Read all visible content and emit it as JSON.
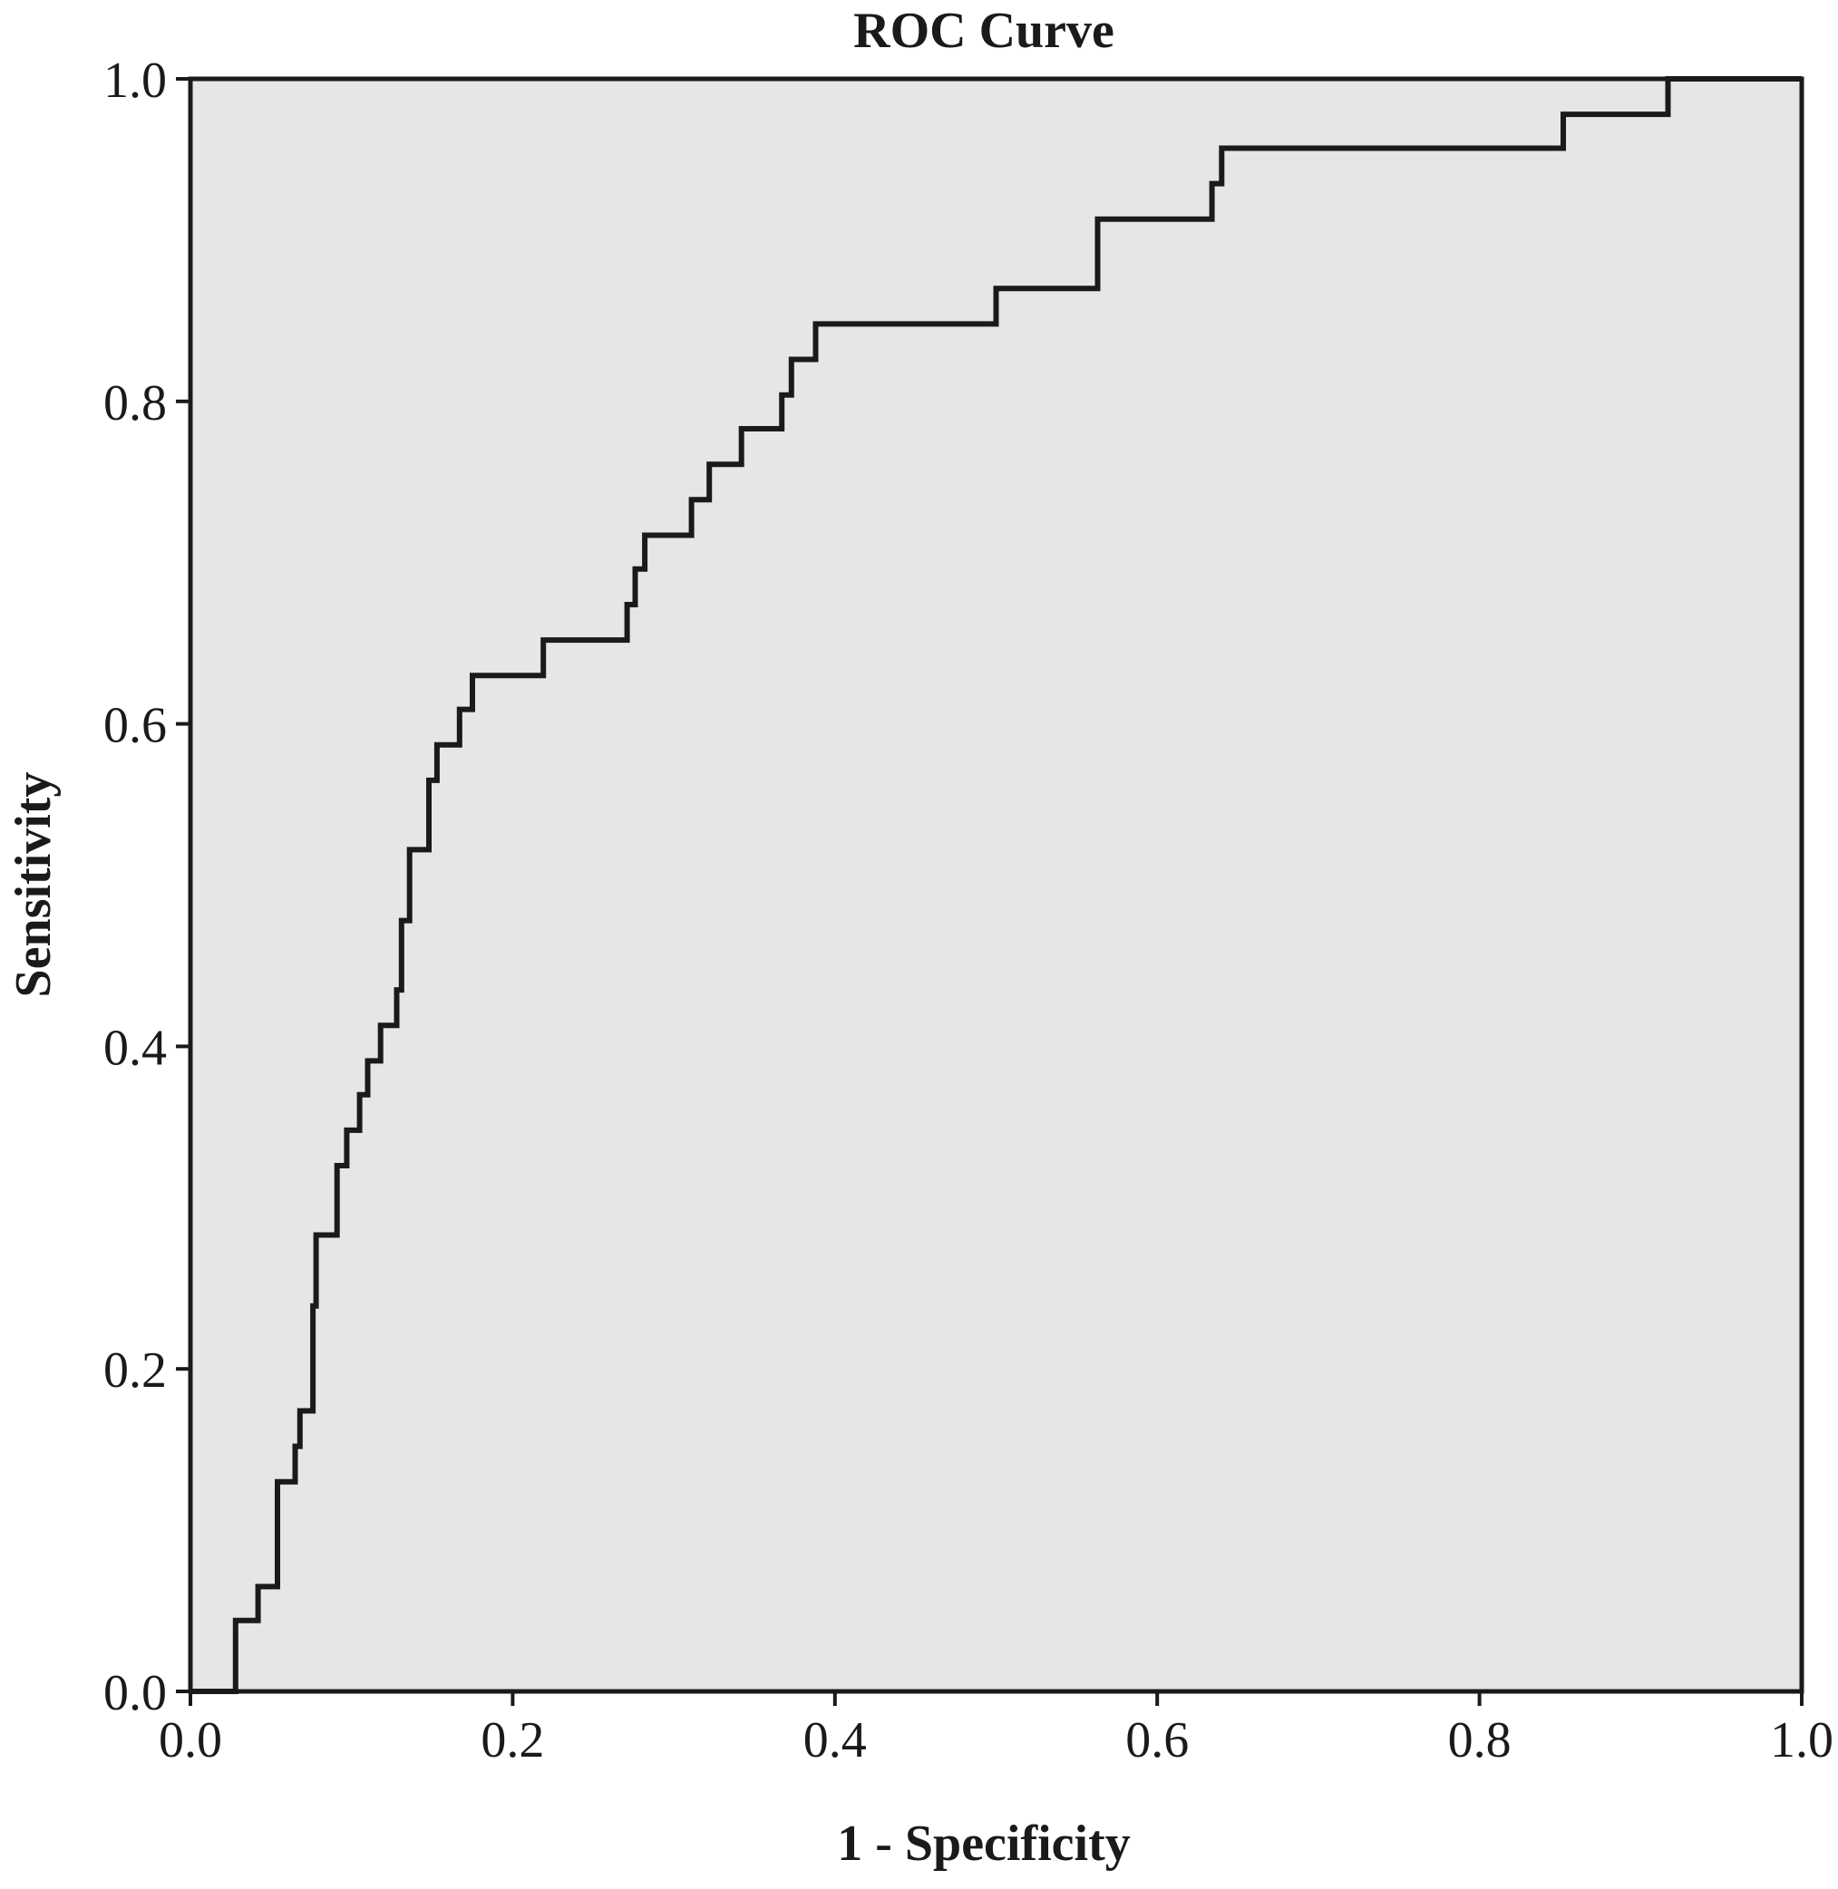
{
  "chart_data": {
    "type": "line",
    "title": "ROC Curve",
    "xlabel": "1 - Specificity",
    "ylabel": "Sensitivity",
    "xlim": [
      0,
      1
    ],
    "ylim": [
      0,
      1
    ],
    "grid": false,
    "x_ticks": [
      "0.0",
      "0.2",
      "0.4",
      "0.6",
      "0.8",
      "1.0"
    ],
    "y_ticks": [
      "0.0",
      "0.2",
      "0.4",
      "0.6",
      "0.8",
      "1.0"
    ],
    "plot_background": "#e6e6e6",
    "line_color": "#1a1a1a",
    "series": [
      {
        "points": [
          [
            0.0,
            0.0
          ],
          [
            0.028,
            0.0
          ],
          [
            0.028,
            0.044
          ],
          [
            0.042,
            0.044
          ],
          [
            0.042,
            0.065
          ],
          [
            0.054,
            0.065
          ],
          [
            0.054,
            0.13
          ],
          [
            0.065,
            0.13
          ],
          [
            0.065,
            0.152
          ],
          [
            0.068,
            0.152
          ],
          [
            0.068,
            0.174
          ],
          [
            0.076,
            0.174
          ],
          [
            0.076,
            0.239
          ],
          [
            0.078,
            0.239
          ],
          [
            0.078,
            0.283
          ],
          [
            0.091,
            0.283
          ],
          [
            0.091,
            0.326
          ],
          [
            0.097,
            0.326
          ],
          [
            0.097,
            0.348
          ],
          [
            0.105,
            0.348
          ],
          [
            0.105,
            0.37
          ],
          [
            0.11,
            0.37
          ],
          [
            0.11,
            0.391
          ],
          [
            0.118,
            0.391
          ],
          [
            0.118,
            0.413
          ],
          [
            0.128,
            0.413
          ],
          [
            0.128,
            0.435
          ],
          [
            0.131,
            0.435
          ],
          [
            0.131,
            0.478
          ],
          [
            0.136,
            0.478
          ],
          [
            0.136,
            0.522
          ],
          [
            0.148,
            0.522
          ],
          [
            0.148,
            0.565
          ],
          [
            0.153,
            0.565
          ],
          [
            0.153,
            0.587
          ],
          [
            0.167,
            0.587
          ],
          [
            0.167,
            0.609
          ],
          [
            0.175,
            0.609
          ],
          [
            0.175,
            0.63
          ],
          [
            0.219,
            0.63
          ],
          [
            0.219,
            0.652
          ],
          [
            0.271,
            0.652
          ],
          [
            0.271,
            0.674
          ],
          [
            0.276,
            0.674
          ],
          [
            0.276,
            0.696
          ],
          [
            0.282,
            0.696
          ],
          [
            0.282,
            0.717
          ],
          [
            0.311,
            0.717
          ],
          [
            0.311,
            0.739
          ],
          [
            0.322,
            0.739
          ],
          [
            0.322,
            0.761
          ],
          [
            0.342,
            0.761
          ],
          [
            0.342,
            0.783
          ],
          [
            0.367,
            0.783
          ],
          [
            0.367,
            0.804
          ],
          [
            0.373,
            0.804
          ],
          [
            0.373,
            0.826
          ],
          [
            0.388,
            0.826
          ],
          [
            0.388,
            0.848
          ],
          [
            0.5,
            0.848
          ],
          [
            0.5,
            0.87
          ],
          [
            0.563,
            0.87
          ],
          [
            0.563,
            0.913
          ],
          [
            0.634,
            0.913
          ],
          [
            0.634,
            0.935
          ],
          [
            0.64,
            0.935
          ],
          [
            0.64,
            0.957
          ],
          [
            0.852,
            0.957
          ],
          [
            0.852,
            0.978
          ],
          [
            0.917,
            0.978
          ],
          [
            0.917,
            1.0
          ],
          [
            1.0,
            1.0
          ]
        ]
      }
    ]
  }
}
